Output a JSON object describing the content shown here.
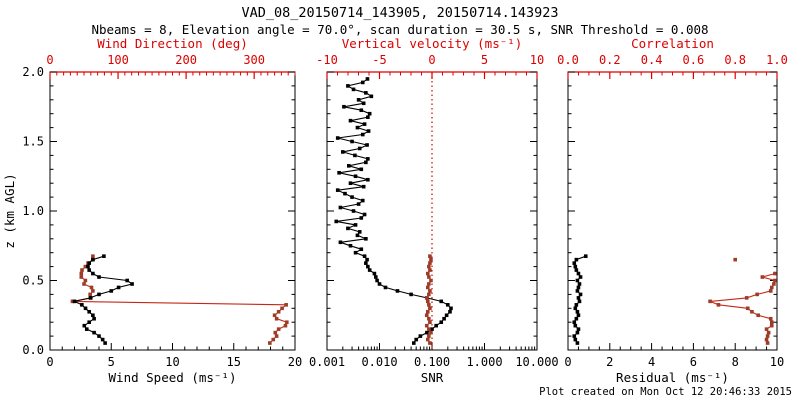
{
  "header": {
    "title": "VAD_08_20150714_143905, 20150714.143923",
    "subtitle": "Nbeams = 8, Elevation angle = 70.0°, scan duration = 30.5 s, SNR Threshold = 0.008"
  },
  "footer": {
    "created": "Plot created on Mon Oct 12 20:46:33 2015"
  },
  "colors": {
    "background": "#ffffff",
    "axis_black": "#000000",
    "axis_red": "#dd0000",
    "series_black": "#000000",
    "series_red_line": "#c62817",
    "series_red_marker": "#9e3c28"
  },
  "chart_data": {
    "type": "line",
    "title": "VAD_08_20150714_143905, 20150714.143923",
    "z_axis": {
      "label": "z (km AGL)",
      "range": [
        0,
        2
      ],
      "ticks": [
        0,
        0.5,
        1,
        1.5,
        2
      ],
      "tick_labels": [
        "0.0",
        "0.5",
        "1.0",
        "1.5",
        "2.0"
      ],
      "minor_step": 0.1
    },
    "panels": [
      {
        "name": "wind-panel",
        "bottom_axis": {
          "label": "Wind Speed (ms⁻¹)",
          "scale": "linear",
          "range": [
            0,
            20
          ],
          "ticks": [
            0,
            5,
            10,
            15,
            20
          ],
          "tick_labels": [
            "0",
            "5",
            "10",
            "15",
            "20"
          ],
          "minor_step": 1,
          "color": "#000000"
        },
        "top_axis": {
          "label": "Wind Direction (deg)",
          "scale": "linear",
          "range": [
            0,
            360
          ],
          "ticks": [
            0,
            100,
            200,
            300
          ],
          "tick_labels": [
            "0",
            "100",
            "200",
            "300"
          ],
          "minor_step": 10,
          "color": "#dd0000"
        },
        "series": [
          {
            "name": "wind-direction",
            "axis": "top",
            "line_color": "#c62817",
            "marker_color": "#9e3c28",
            "z": [
              0.05,
              0.075,
              0.1,
              0.125,
              0.15,
              0.175,
              0.2,
              0.225,
              0.25,
              0.275,
              0.3,
              0.325,
              0.35,
              0.375,
              0.4,
              0.425,
              0.45,
              0.475,
              0.5,
              0.525,
              0.55,
              0.575,
              0.6,
              0.625,
              0.65,
              0.675
            ],
            "values": [
              323,
              328,
              333,
              331,
              336,
              346,
              348,
              333,
              330,
              336,
              341,
              347,
              33,
              60,
              59,
              63,
              61,
              50,
              52,
              46,
              46,
              47,
              52,
              56,
              63,
              63
            ]
          },
          {
            "name": "wind-speed",
            "axis": "bottom",
            "line_color": "#000000",
            "marker_color": "#000000",
            "z": [
              0.05,
              0.075,
              0.1,
              0.125,
              0.15,
              0.175,
              0.2,
              0.225,
              0.25,
              0.275,
              0.3,
              0.325,
              0.35,
              0.375,
              0.4,
              0.425,
              0.45,
              0.475,
              0.5,
              0.525,
              0.55,
              0.575,
              0.6,
              0.625,
              0.65,
              0.675
            ],
            "values": [
              4.5,
              4.3,
              4.0,
              3.6,
              3.0,
              2.8,
              3.2,
              3.6,
              3.5,
              3.2,
              2.9,
              2.6,
              2.0,
              3.3,
              4.0,
              5.0,
              5.6,
              6.7,
              6.3,
              4.0,
              3.5,
              3.2,
              3.1,
              3.2,
              3.5,
              4.4
            ]
          }
        ]
      },
      {
        "name": "snr-panel",
        "bottom_axis": {
          "label": "SNR",
          "scale": "log",
          "range": [
            0.001,
            10
          ],
          "ticks": [
            0.001,
            0.01,
            0.1,
            1,
            10
          ],
          "tick_labels": [
            "0.001",
            "0.010",
            "0.100",
            "1.000",
            "10.000"
          ],
          "color": "#000000"
        },
        "top_axis": {
          "label": "Vertical velocity (ms⁻¹)",
          "scale": "linear",
          "range": [
            -10,
            10
          ],
          "ticks": [
            -10,
            -5,
            0,
            5,
            10
          ],
          "tick_labels": [
            "-10",
            "-5",
            "0",
            "5",
            "10"
          ],
          "minor_step": 1,
          "color": "#dd0000"
        },
        "zero_line": {
          "axis": "top",
          "value": 0,
          "style": "dotted",
          "color": "#dd0000"
        },
        "series": [
          {
            "name": "snr",
            "axis": "bottom",
            "line_color": "#000000",
            "marker_color": "#000000",
            "z": [
              0.05,
              0.075,
              0.1,
              0.125,
              0.15,
              0.175,
              0.2,
              0.225,
              0.25,
              0.275,
              0.3,
              0.325,
              0.35,
              0.375,
              0.4,
              0.425,
              0.45,
              0.475,
              0.5,
              0.525,
              0.55,
              0.575,
              0.6,
              0.625,
              0.65,
              0.675,
              0.7,
              0.725,
              0.75,
              0.775,
              0.8,
              0.825,
              0.85,
              0.875,
              0.9,
              0.925,
              0.95,
              0.975,
              1.0,
              1.025,
              1.05,
              1.075,
              1.1,
              1.125,
              1.15,
              1.175,
              1.2,
              1.225,
              1.25,
              1.275,
              1.3,
              1.325,
              1.35,
              1.375,
              1.4,
              1.425,
              1.45,
              1.475,
              1.5,
              1.525,
              1.55,
              1.575,
              1.6,
              1.625,
              1.65,
              1.675,
              1.7,
              1.725,
              1.75,
              1.775,
              1.8,
              1.825,
              1.85,
              1.875,
              1.9,
              1.925,
              1.95
            ],
            "values": [
              0.045,
              0.05,
              0.06,
              0.08,
              0.1,
              0.12,
              0.15,
              0.17,
              0.19,
              0.22,
              0.23,
              0.2,
              0.15,
              0.08,
              0.04,
              0.022,
              0.013,
              0.01,
              0.009,
              0.0085,
              0.008,
              0.0065,
              0.006,
              0.0055,
              0.0058,
              0.0052,
              0.0035,
              0.0045,
              0.0028,
              0.0018,
              0.0055,
              0.0038,
              0.0042,
              0.0025,
              0.0035,
              0.0015,
              0.0045,
              0.0052,
              0.0032,
              0.0018,
              0.004,
              0.0048,
              0.003,
              0.0022,
              0.0016,
              0.005,
              0.0028,
              0.006,
              0.0035,
              0.0017,
              0.0045,
              0.0026,
              0.0055,
              0.006,
              0.0034,
              0.002,
              0.0042,
              0.0058,
              0.003,
              0.0016,
              0.0048,
              0.0062,
              0.0038,
              0.0052,
              0.0028,
              0.006,
              0.0065,
              0.0045,
              0.0021,
              0.005,
              0.004,
              0.007,
              0.0055,
              0.0032,
              0.0025,
              0.0048,
              0.0059
            ]
          },
          {
            "name": "vertical-velocity",
            "axis": "top",
            "line_color": "#c62817",
            "marker_color": "#9e3c28",
            "z": [
              0.05,
              0.075,
              0.1,
              0.125,
              0.15,
              0.175,
              0.2,
              0.225,
              0.25,
              0.275,
              0.3,
              0.325,
              0.35,
              0.375,
              0.4,
              0.425,
              0.45,
              0.475,
              0.5,
              0.525,
              0.55,
              0.575,
              0.6,
              0.625,
              0.65,
              0.675
            ],
            "values": [
              -0.2,
              -0.4,
              -0.3,
              -0.1,
              -0.3,
              -0.5,
              -0.2,
              -0.3,
              -0.5,
              -0.4,
              -0.2,
              -0.3,
              -0.4,
              -0.5,
              -0.3,
              -0.2,
              -0.4,
              -0.3,
              -0.1,
              -0.3,
              -0.4,
              -0.2,
              -0.3,
              -0.2,
              -0.1,
              -0.2
            ]
          }
        ]
      },
      {
        "name": "residual-panel",
        "bottom_axis": {
          "label": "Residual (ms⁻¹)",
          "scale": "linear",
          "range": [
            0,
            10
          ],
          "ticks": [
            0,
            2,
            4,
            6,
            8,
            10
          ],
          "tick_labels": [
            "0",
            "2",
            "4",
            "6",
            "8",
            "10"
          ],
          "minor_step": 0.5,
          "color": "#000000"
        },
        "top_axis": {
          "label": "Correlation",
          "scale": "linear",
          "range": [
            0,
            1
          ],
          "ticks": [
            0,
            0.2,
            0.4,
            0.6,
            0.8,
            1.0
          ],
          "tick_labels": [
            "0.0",
            "0.2",
            "0.4",
            "0.6",
            "0.8",
            "1.0"
          ],
          "minor_step": 0.05,
          "color": "#dd0000"
        },
        "series": [
          {
            "name": "correlation",
            "axis": "top",
            "line_color": "#c62817",
            "marker_color": "#9e3c28",
            "z": [
              0.05,
              0.075,
              0.1,
              0.125,
              0.15,
              0.175,
              0.2,
              0.225,
              0.25,
              0.275,
              0.3,
              0.325,
              0.35,
              0.375,
              0.4,
              0.425,
              0.45,
              0.475,
              0.5,
              0.525,
              0.55,
              0.575,
              0.6,
              0.625,
              0.65,
              0.675
            ],
            "values": [
              0.955,
              0.95,
              0.955,
              0.96,
              0.95,
              0.975,
              0.975,
              0.97,
              0.91,
              0.88,
              0.86,
              0.72,
              0.68,
              0.855,
              0.905,
              0.97,
              0.975,
              0.985,
              0.99,
              0.93,
              0.99,
              null,
              null,
              null,
              0.8,
              null
            ]
          },
          {
            "name": "residual",
            "axis": "bottom",
            "line_color": "#000000",
            "marker_color": "#000000",
            "z": [
              0.05,
              0.075,
              0.1,
              0.125,
              0.15,
              0.175,
              0.2,
              0.225,
              0.25,
              0.275,
              0.3,
              0.325,
              0.35,
              0.375,
              0.4,
              0.425,
              0.45,
              0.475,
              0.5,
              0.525,
              0.55,
              0.575,
              0.6,
              0.625,
              0.65,
              0.675
            ],
            "values": [
              0.45,
              0.35,
              0.3,
              0.45,
              0.5,
              0.35,
              0.3,
              0.4,
              0.5,
              0.45,
              0.35,
              0.4,
              0.55,
              0.5,
              0.6,
              0.45,
              0.5,
              0.55,
              0.45,
              0.6,
              0.5,
              0.4,
              0.35,
              0.3,
              0.4,
              0.85
            ]
          }
        ]
      }
    ]
  }
}
